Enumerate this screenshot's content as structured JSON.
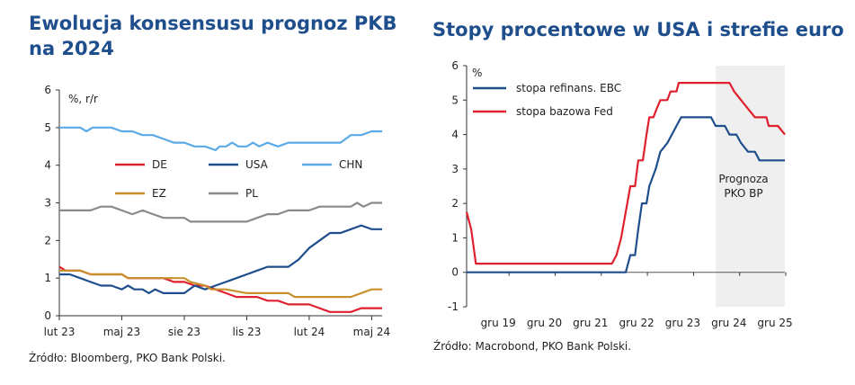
{
  "title_left": "Ewolucja konsensusu prognoz PKB na 2024",
  "title_right": "Stopy procentowe w USA i strefie euro",
  "source_left": "Źródło: Bloomberg, PKO Bank Polski.",
  "source_right": "Źródło: Macrobond, PKO Bank Polski.",
  "chart_data": [
    {
      "type": "line",
      "title": "Ewolucja konsensusu prognoz PKB na 2024",
      "unit_label": "%, r/r",
      "ylim": [
        0,
        6
      ],
      "yticks": [
        "0",
        "1",
        "2",
        "3",
        "4",
        "5",
        "6"
      ],
      "xlim": [
        0,
        15.5
      ],
      "xticks": [
        {
          "label": "lut 23",
          "x": 0
        },
        {
          "label": "maj 23",
          "x": 3
        },
        {
          "label": "sie 23",
          "x": 6
        },
        {
          "label": "lis 23",
          "x": 9
        },
        {
          "label": "lut 24",
          "x": 12
        },
        {
          "label": "maj 24",
          "x": 15
        }
      ],
      "legend_position": "middle",
      "series": [
        {
          "name": "DE",
          "color": "#e0202e",
          "points": [
            [
              0,
              1.3
            ],
            [
              0.3,
              1.2
            ],
            [
              1,
              1.2
            ],
            [
              1.5,
              1.1
            ],
            [
              2,
              1.1
            ],
            [
              3,
              1.1
            ],
            [
              3.3,
              1.0
            ],
            [
              4,
              1.0
            ],
            [
              5,
              1.0
            ],
            [
              5.5,
              0.9
            ],
            [
              6,
              0.9
            ],
            [
              6.5,
              0.8
            ],
            [
              7,
              0.8
            ],
            [
              7.5,
              0.7
            ],
            [
              8,
              0.6
            ],
            [
              8.5,
              0.5
            ],
            [
              9,
              0.5
            ],
            [
              9.5,
              0.5
            ],
            [
              10,
              0.4
            ],
            [
              10.5,
              0.4
            ],
            [
              11,
              0.3
            ],
            [
              11.5,
              0.3
            ],
            [
              12,
              0.3
            ],
            [
              12.5,
              0.2
            ],
            [
              13,
              0.1
            ],
            [
              13.5,
              0.1
            ],
            [
              14,
              0.1
            ],
            [
              14.5,
              0.2
            ],
            [
              15,
              0.2
            ],
            [
              15.5,
              0.2
            ]
          ]
        },
        {
          "name": "USA",
          "color": "#1f4e8c",
          "points": [
            [
              0,
              1.1
            ],
            [
              0.5,
              1.1
            ],
            [
              1,
              1.0
            ],
            [
              1.5,
              0.9
            ],
            [
              2,
              0.8
            ],
            [
              2.5,
              0.8
            ],
            [
              3,
              0.7
            ],
            [
              3.3,
              0.8
            ],
            [
              3.6,
              0.7
            ],
            [
              4,
              0.7
            ],
            [
              4.3,
              0.6
            ],
            [
              4.6,
              0.7
            ],
            [
              5,
              0.6
            ],
            [
              5.5,
              0.6
            ],
            [
              6,
              0.6
            ],
            [
              6.5,
              0.8
            ],
            [
              7,
              0.7
            ],
            [
              7.5,
              0.8
            ],
            [
              8,
              0.9
            ],
            [
              8.5,
              1.0
            ],
            [
              9,
              1.1
            ],
            [
              9.5,
              1.2
            ],
            [
              10,
              1.3
            ],
            [
              10.5,
              1.3
            ],
            [
              11,
              1.3
            ],
            [
              11.5,
              1.5
            ],
            [
              12,
              1.8
            ],
            [
              12.5,
              2.0
            ],
            [
              13,
              2.2
            ],
            [
              13.5,
              2.2
            ],
            [
              14,
              2.3
            ],
            [
              14.5,
              2.4
            ],
            [
              15,
              2.3
            ],
            [
              15.5,
              2.3
            ]
          ]
        },
        {
          "name": "CHN",
          "color": "#5aaae8",
          "points": [
            [
              0,
              5.0
            ],
            [
              0.5,
              5.0
            ],
            [
              1,
              5.0
            ],
            [
              1.3,
              4.9
            ],
            [
              1.6,
              5.0
            ],
            [
              2,
              5.0
            ],
            [
              2.5,
              5.0
            ],
            [
              3,
              4.9
            ],
            [
              3.5,
              4.9
            ],
            [
              4,
              4.8
            ],
            [
              4.5,
              4.8
            ],
            [
              5,
              4.7
            ],
            [
              5.5,
              4.6
            ],
            [
              6,
              4.6
            ],
            [
              6.5,
              4.5
            ],
            [
              7,
              4.5
            ],
            [
              7.5,
              4.4
            ],
            [
              7.7,
              4.5
            ],
            [
              8,
              4.5
            ],
            [
              8.3,
              4.6
            ],
            [
              8.6,
              4.5
            ],
            [
              9,
              4.5
            ],
            [
              9.3,
              4.6
            ],
            [
              9.6,
              4.5
            ],
            [
              10,
              4.6
            ],
            [
              10.5,
              4.5
            ],
            [
              11,
              4.6
            ],
            [
              11.5,
              4.6
            ],
            [
              12,
              4.6
            ],
            [
              12.5,
              4.6
            ],
            [
              13,
              4.6
            ],
            [
              13.5,
              4.6
            ],
            [
              14,
              4.8
            ],
            [
              14.5,
              4.8
            ],
            [
              15,
              4.9
            ],
            [
              15.5,
              4.9
            ]
          ]
        },
        {
          "name": "EZ",
          "color": "#c8902a",
          "points": [
            [
              0,
              1.2
            ],
            [
              0.5,
              1.2
            ],
            [
              1,
              1.2
            ],
            [
              1.5,
              1.1
            ],
            [
              2,
              1.1
            ],
            [
              3,
              1.1
            ],
            [
              3.3,
              1.0
            ],
            [
              4,
              1.0
            ],
            [
              5,
              1.0
            ],
            [
              5.5,
              1.0
            ],
            [
              6,
              1.0
            ],
            [
              6.3,
              0.9
            ],
            [
              7,
              0.8
            ],
            [
              7.3,
              0.7
            ],
            [
              8,
              0.7
            ],
            [
              9,
              0.6
            ],
            [
              10,
              0.6
            ],
            [
              10.5,
              0.6
            ],
            [
              11,
              0.6
            ],
            [
              11.3,
              0.5
            ],
            [
              12,
              0.5
            ],
            [
              13,
              0.5
            ],
            [
              14,
              0.5
            ],
            [
              14.5,
              0.6
            ],
            [
              15,
              0.7
            ],
            [
              15.5,
              0.7
            ]
          ]
        },
        {
          "name": "PL",
          "color": "#8a8a8a",
          "points": [
            [
              0,
              2.8
            ],
            [
              1,
              2.8
            ],
            [
              1.5,
              2.8
            ],
            [
              2,
              2.9
            ],
            [
              2.5,
              2.9
            ],
            [
              3,
              2.8
            ],
            [
              3.5,
              2.7
            ],
            [
              4,
              2.8
            ],
            [
              4.5,
              2.7
            ],
            [
              5,
              2.6
            ],
            [
              5.5,
              2.6
            ],
            [
              6,
              2.6
            ],
            [
              6.3,
              2.5
            ],
            [
              7,
              2.5
            ],
            [
              8,
              2.5
            ],
            [
              9,
              2.5
            ],
            [
              9.5,
              2.6
            ],
            [
              10,
              2.7
            ],
            [
              10.5,
              2.7
            ],
            [
              11,
              2.8
            ],
            [
              11.5,
              2.8
            ],
            [
              12,
              2.8
            ],
            [
              12.5,
              2.9
            ],
            [
              13,
              2.9
            ],
            [
              13.5,
              2.9
            ],
            [
              14,
              2.9
            ],
            [
              14.3,
              3.0
            ],
            [
              14.6,
              2.9
            ],
            [
              15,
              3.0
            ],
            [
              15.5,
              3.0
            ]
          ]
        }
      ]
    },
    {
      "type": "line",
      "title": "Stopy procentowe w USA i strefie euro",
      "unit_label": "%",
      "ylim": [
        -1,
        6
      ],
      "yticks": [
        "-1",
        "0",
        "1",
        "2",
        "3",
        "4",
        "5",
        "6"
      ],
      "xlim": [
        2019,
        2025.9
      ],
      "xticks": [
        {
          "label": "gru 19",
          "x": 2019.92
        },
        {
          "label": "gru 20",
          "x": 2020.92
        },
        {
          "label": "gru 21",
          "x": 2021.92
        },
        {
          "label": "gru 22",
          "x": 2022.92
        },
        {
          "label": "gru 23",
          "x": 2023.92
        },
        {
          "label": "gru 24",
          "x": 2024.92
        },
        {
          "label": "gru 25",
          "x": 2025.92
        }
      ],
      "forecast_region": {
        "start": 2024.4,
        "end": 2025.9,
        "label_line1": "Prognoza",
        "label_line2": "PKO BP"
      },
      "legend_position": "top-left",
      "series": [
        {
          "name": "stopa refinans. EBC",
          "color": "#1f4e8c",
          "points": [
            [
              2019,
              0
            ],
            [
              2022.45,
              0
            ],
            [
              2022.55,
              0.5
            ],
            [
              2022.65,
              0.5
            ],
            [
              2022.72,
              1.25
            ],
            [
              2022.8,
              2.0
            ],
            [
              2022.9,
              2.0
            ],
            [
              2022.96,
              2.5
            ],
            [
              2023.1,
              3.0
            ],
            [
              2023.2,
              3.5
            ],
            [
              2023.35,
              3.75
            ],
            [
              2023.45,
              4.0
            ],
            [
              2023.55,
              4.25
            ],
            [
              2023.65,
              4.5
            ],
            [
              2024.3,
              4.5
            ],
            [
              2024.4,
              4.25
            ],
            [
              2024.6,
              4.25
            ],
            [
              2024.7,
              4.0
            ],
            [
              2024.85,
              4.0
            ],
            [
              2024.95,
              3.75
            ],
            [
              2025.1,
              3.5
            ],
            [
              2025.25,
              3.5
            ],
            [
              2025.35,
              3.25
            ],
            [
              2025.9,
              3.25
            ]
          ]
        },
        {
          "name": "stopa bazowa Fed",
          "color": "#e0202e",
          "points": [
            [
              2019,
              1.75
            ],
            [
              2019.1,
              1.25
            ],
            [
              2019.2,
              0.25
            ],
            [
              2022.15,
              0.25
            ],
            [
              2022.25,
              0.5
            ],
            [
              2022.35,
              1.0
            ],
            [
              2022.45,
              1.75
            ],
            [
              2022.55,
              2.5
            ],
            [
              2022.65,
              2.5
            ],
            [
              2022.72,
              3.25
            ],
            [
              2022.82,
              3.25
            ],
            [
              2022.9,
              4.0
            ],
            [
              2022.96,
              4.5
            ],
            [
              2023.05,
              4.5
            ],
            [
              2023.12,
              4.75
            ],
            [
              2023.2,
              5.0
            ],
            [
              2023.35,
              5.0
            ],
            [
              2023.42,
              5.25
            ],
            [
              2023.55,
              5.25
            ],
            [
              2023.6,
              5.5
            ],
            [
              2024.7,
              5.5
            ],
            [
              2024.8,
              5.25
            ],
            [
              2024.95,
              5.0
            ],
            [
              2025.1,
              4.75
            ],
            [
              2025.25,
              4.5
            ],
            [
              2025.5,
              4.5
            ],
            [
              2025.55,
              4.25
            ],
            [
              2025.75,
              4.25
            ],
            [
              2025.9,
              4.0
            ]
          ]
        }
      ]
    }
  ]
}
